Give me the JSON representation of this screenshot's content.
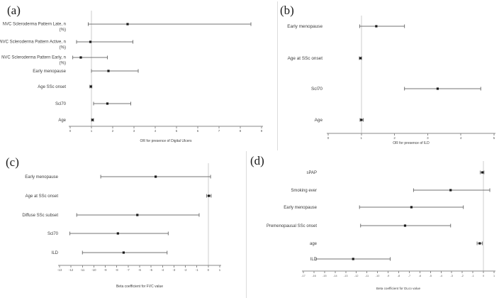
{
  "figure": {
    "background": "#ffffff",
    "divider_color": "#dcdcdc",
    "marker_color": "#1a1a1a",
    "error_bar_color": "#737373",
    "axis_color": "#8a8a8a",
    "reference_line_color": "#cccccc"
  },
  "chart_data": [
    {
      "type": "scatter",
      "subtype": "forest-plot",
      "panel_label": "(a)",
      "xlabel": "OR for presence of Digital Ulcers",
      "xlim": [
        0,
        9
      ],
      "xtick_step": 1,
      "reference_line_x": 1,
      "grid": false,
      "value_type": "odds ratio",
      "rows": [
        {
          "label": "NVC Scleroderma Pattern Late, n (%)",
          "label_lines": [
            "NVC Scleroderma Pattern Late, n",
            "(%)"
          ],
          "value": 2.7,
          "ci_low": 0.85,
          "ci_high": 8.5
        },
        {
          "label": "NVC Scleroderma Pattern Active, n (%)",
          "label_lines": [
            "NVC Scleroderma Pattern Active, n",
            "(%)"
          ],
          "value": 0.95,
          "ci_low": 0.3,
          "ci_high": 2.95
        },
        {
          "label": "NVC Scleroderma Pattern Early, n (%)",
          "label_lines": [
            "NVC Scleroderma Pattern Early, n",
            "(%)"
          ],
          "value": 0.5,
          "ci_low": 0.12,
          "ci_high": 1.75
        },
        {
          "label": "Early menopause",
          "label_lines": [
            "Early menopause"
          ],
          "value": 1.8,
          "ci_low": 1.0,
          "ci_high": 3.2
        },
        {
          "label": "Age SSc onset",
          "label_lines": [
            "Age SSc onset"
          ],
          "value": 0.97,
          "ci_low": 0.93,
          "ci_high": 1.02
        },
        {
          "label": "Scl70",
          "label_lines": [
            "Scl70"
          ],
          "value": 1.75,
          "ci_low": 1.1,
          "ci_high": 2.85
        },
        {
          "label": "Age",
          "label_lines": [
            "Age"
          ],
          "value": 1.05,
          "ci_low": 1.0,
          "ci_high": 1.1
        }
      ]
    },
    {
      "type": "scatter",
      "subtype": "forest-plot",
      "panel_label": "(b)",
      "xlabel": "OR for presence of ILD",
      "xlim": [
        0,
        5
      ],
      "xtick_step": 1,
      "reference_line_x": 1,
      "grid": false,
      "value_type": "odds ratio",
      "rows": [
        {
          "label": "Early menopause",
          "label_lines": [
            "Early menopause"
          ],
          "value": 1.45,
          "ci_low": 0.95,
          "ci_high": 2.3
        },
        {
          "label": "Age at SSc onset",
          "label_lines": [
            "Age at SSc onset"
          ],
          "value": 0.97,
          "ci_low": 0.94,
          "ci_high": 1.01
        },
        {
          "label": "Scl70",
          "label_lines": [
            "Scl70"
          ],
          "value": 3.3,
          "ci_low": 2.3,
          "ci_high": 4.6
        },
        {
          "label": "Age",
          "label_lines": [
            "Age"
          ],
          "value": 1.0,
          "ci_low": 0.96,
          "ci_high": 1.06
        }
      ]
    },
    {
      "type": "scatter",
      "subtype": "forest-plot",
      "panel_label": "(c)",
      "xlabel": "Beta coefficient for FVC value",
      "xlim": [
        -13,
        1
      ],
      "xtick_step": 1,
      "reference_line_x": 0,
      "grid": false,
      "value_type": "beta coefficient",
      "rows": [
        {
          "label": "Early menopause",
          "label_lines": [
            "Early menopause"
          ],
          "value": -4.6,
          "ci_low": -9.4,
          "ci_high": 0.2
        },
        {
          "label": "Age at SSc onset",
          "label_lines": [
            "Age at SSc onset"
          ],
          "value": 0.05,
          "ci_low": -0.15,
          "ci_high": 0.25
        },
        {
          "label": "Diffuse SSc subset",
          "label_lines": [
            "Diffuse SSc subset"
          ],
          "value": -6.2,
          "ci_low": -11.5,
          "ci_high": -0.8
        },
        {
          "label": "Scl70",
          "label_lines": [
            "Scl70"
          ],
          "value": -7.9,
          "ci_low": -12.1,
          "ci_high": -3.5
        },
        {
          "label": "ILD",
          "label_lines": [
            "ILD"
          ],
          "value": -7.4,
          "ci_low": -11.0,
          "ci_high": -3.6
        }
      ]
    },
    {
      "type": "scatter",
      "subtype": "forest-plot",
      "panel_label": "(d)",
      "xlabel": "Beta coefficient for DLco value",
      "xlim": [
        -17,
        1
      ],
      "xtick_step": 1,
      "reference_line_x": 0,
      "grid": false,
      "value_type": "beta coefficient",
      "rows": [
        {
          "label": "sPAP",
          "label_lines": [
            "sPAP"
          ],
          "value": -0.1,
          "ci_low": -0.3,
          "ci_high": 0.05
        },
        {
          "label": "Smoking ever",
          "label_lines": [
            "Smoking ever"
          ],
          "value": -3.1,
          "ci_low": -6.6,
          "ci_high": 0.6
        },
        {
          "label": "Early menopause",
          "label_lines": [
            "Early menopause"
          ],
          "value": -6.8,
          "ci_low": -11.7,
          "ci_high": -1.9
        },
        {
          "label": "Premenopausal SSc onset",
          "label_lines": [
            "Premenopausal SSc onset"
          ],
          "value": -7.4,
          "ci_low": -11.6,
          "ci_high": -3.1
        },
        {
          "label": "age",
          "label_lines": [
            "age"
          ],
          "value": -0.35,
          "ci_low": -0.6,
          "ci_high": -0.1
        },
        {
          "label": "ILD",
          "label_lines": [
            "ILD"
          ],
          "value": -12.3,
          "ci_low": -15.8,
          "ci_high": -8.8
        }
      ]
    }
  ]
}
